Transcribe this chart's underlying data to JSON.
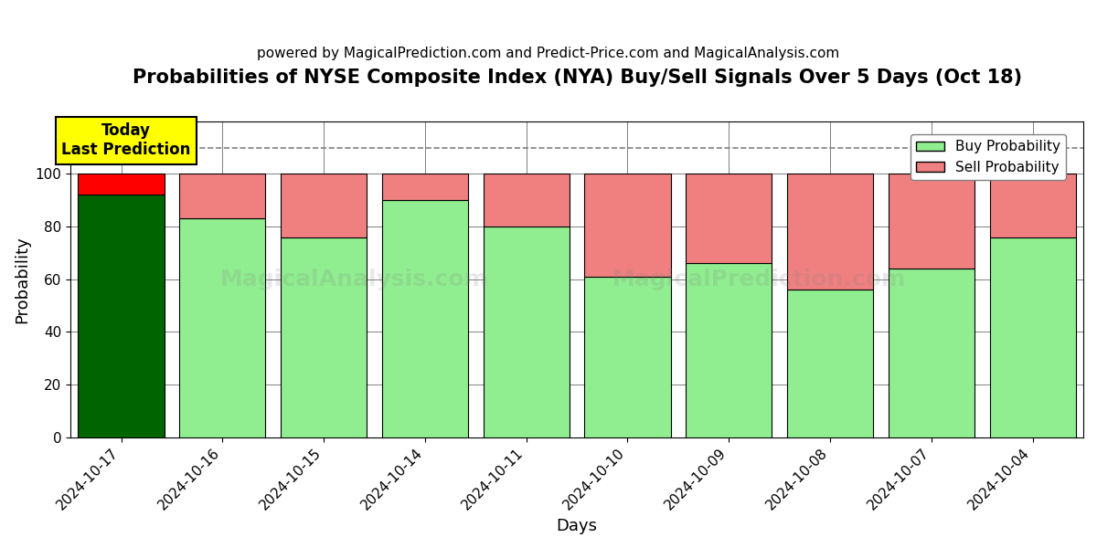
{
  "title": "Probabilities of NYSE Composite Index (NYA) Buy/Sell Signals Over 5 Days (Oct 18)",
  "subtitle": "powered by MagicalPrediction.com and Predict-Price.com and MagicalAnalysis.com",
  "xlabel": "Days",
  "ylabel": "Probability",
  "dates": [
    "2024-10-17",
    "2024-10-16",
    "2024-10-15",
    "2024-10-14",
    "2024-10-11",
    "2024-10-10",
    "2024-10-09",
    "2024-10-08",
    "2024-10-07",
    "2024-10-04"
  ],
  "buy_values": [
    92,
    83,
    76,
    90,
    80,
    61,
    66,
    56,
    64,
    76
  ],
  "sell_values": [
    8,
    17,
    24,
    10,
    20,
    39,
    34,
    44,
    36,
    24
  ],
  "buy_colors_normal": "#90EE90",
  "sell_colors_normal": "#F08080",
  "buy_color_today": "#006400",
  "sell_color_today": "#FF0000",
  "bar_edge_color": "#000000",
  "ylim": [
    0,
    120
  ],
  "yticks": [
    0,
    20,
    40,
    60,
    80,
    100
  ],
  "dashed_line_y": 110,
  "today_label": "Today\nLast Prediction",
  "legend_buy": "Buy Probability",
  "legend_sell": "Sell Probability",
  "title_fontsize": 15,
  "subtitle_fontsize": 11,
  "label_fontsize": 13,
  "tick_fontsize": 11
}
